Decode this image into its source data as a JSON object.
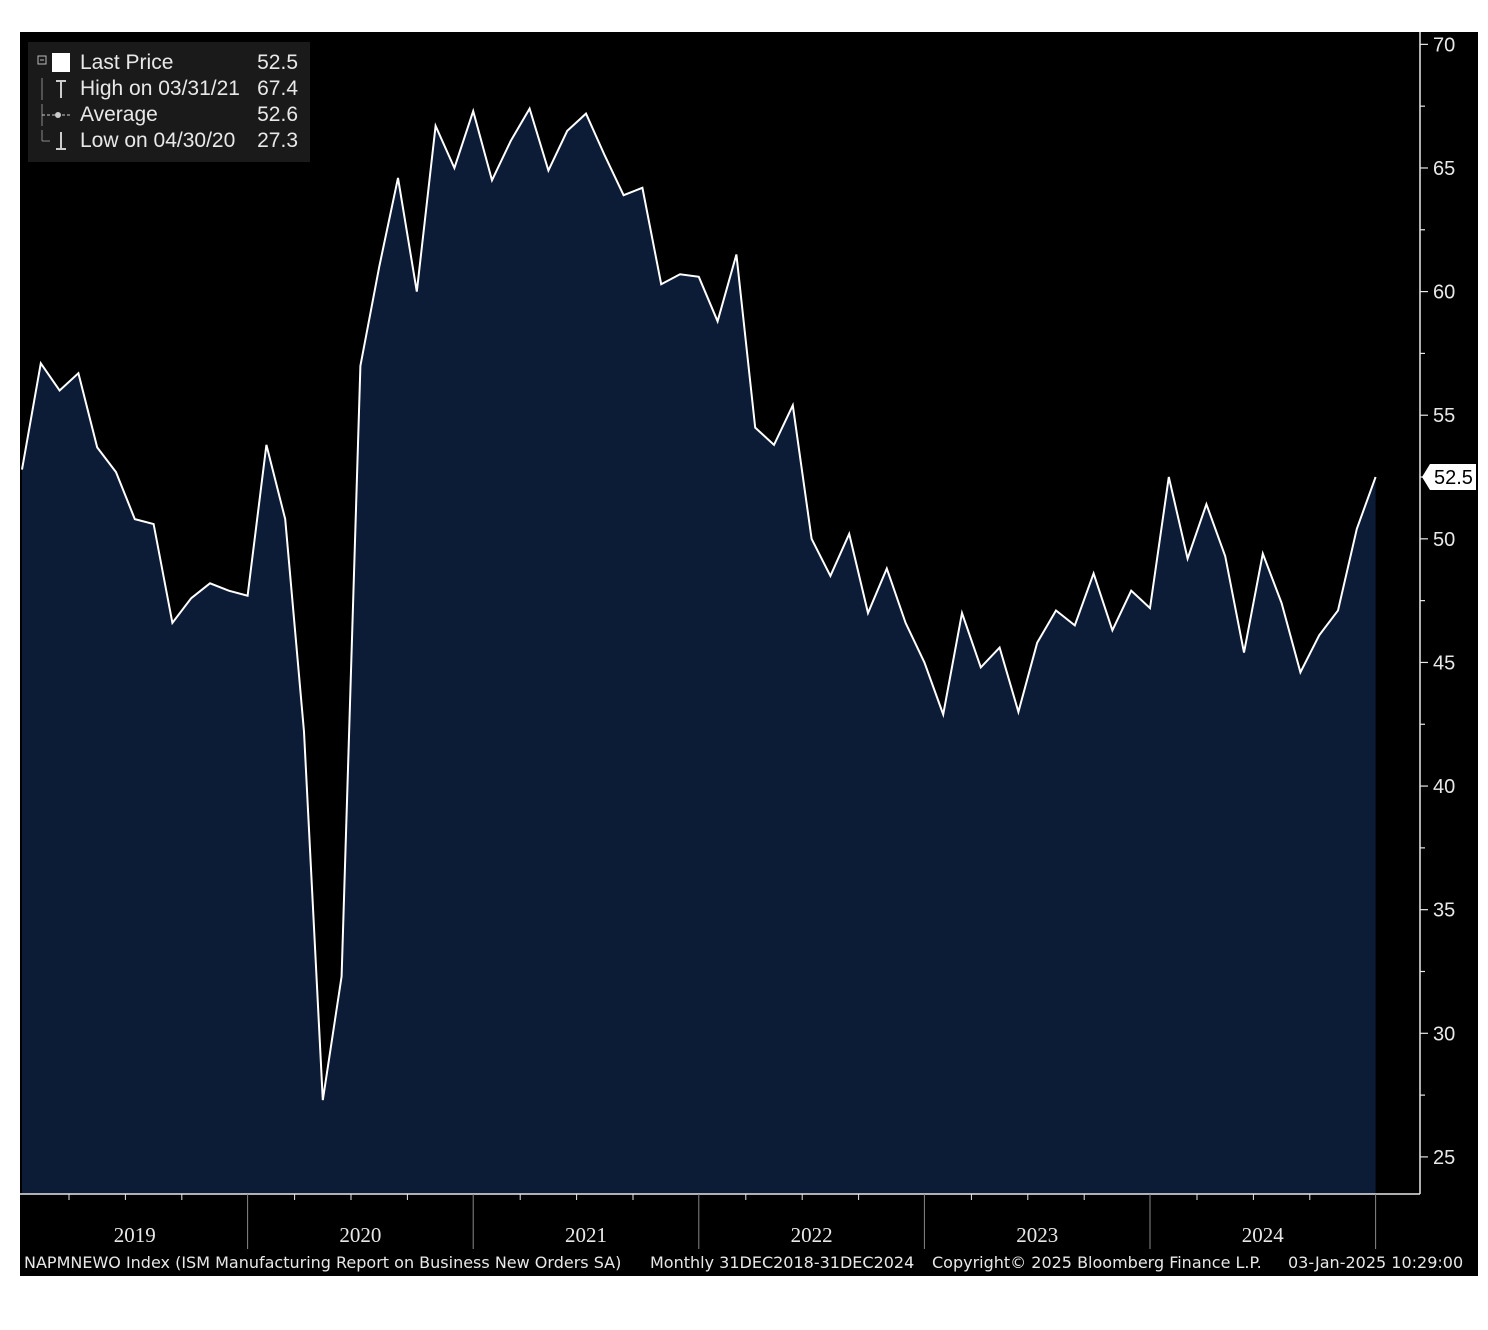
{
  "legend": {
    "items": [
      {
        "label": "Last Price",
        "value": "52.5"
      },
      {
        "label": "High on 03/31/21",
        "value": "67.4"
      },
      {
        "label": "Average",
        "value": "52.6"
      },
      {
        "label": "Low on 04/30/20",
        "value": "27.3"
      }
    ]
  },
  "footer": {
    "index": "NAPMNEWO Index (ISM Manufacturing Report on Business New Orders SA)",
    "period": "Monthly 31DEC2018-31DEC2024",
    "copyright": "Copyright© 2025 Bloomberg Finance L.P.",
    "timestamp": "03-Jan-2025 10:29:00"
  },
  "colors": {
    "background": "#000000",
    "area_fill": "#0c1b36",
    "line": "#ffffff",
    "text": "#e8e8e8"
  },
  "chart_data": {
    "type": "area",
    "ylim": [
      23.5,
      70.5
    ],
    "y_ticks": [
      25,
      30,
      35,
      40,
      45,
      50,
      55,
      60,
      65,
      70
    ],
    "x_labels": [
      "2019",
      "2020",
      "2021",
      "2022",
      "2023",
      "2024"
    ],
    "last_value_label": "52.5",
    "series": [
      {
        "values": [
          52.8,
          57.1,
          56.0,
          56.7,
          53.7,
          52.7,
          50.8,
          50.6,
          46.6,
          47.6,
          48.2,
          47.9,
          47.7,
          53.8,
          50.8,
          42.2,
          27.3,
          32.3,
          57.0,
          61.0,
          64.6,
          60.0,
          66.7,
          65.0,
          67.3,
          64.5,
          66.1,
          67.4,
          64.9,
          66.5,
          67.2,
          65.5,
          63.9,
          64.2,
          60.3,
          60.7,
          60.6,
          58.8,
          61.5,
          54.5,
          53.8,
          55.4,
          50.0,
          48.5,
          50.2,
          47.0,
          48.8,
          46.6,
          45.0,
          42.9,
          47.0,
          44.8,
          45.6,
          43.0,
          45.8,
          47.1,
          46.5,
          48.6,
          46.3,
          47.9,
          47.2,
          52.5,
          49.2,
          51.4,
          49.3,
          45.4,
          49.4,
          47.4,
          44.6,
          46.1,
          47.1,
          50.4,
          52.5
        ]
      }
    ]
  }
}
